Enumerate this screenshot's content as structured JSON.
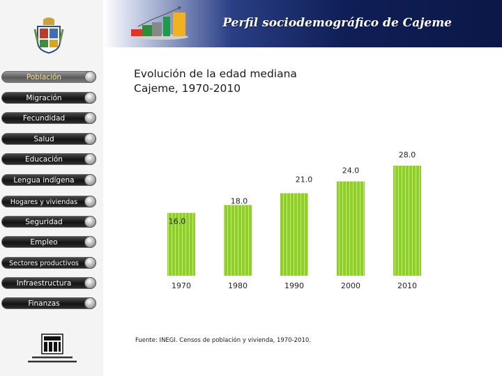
{
  "header": {
    "title": "Perfil sociodemográfico de Cajeme"
  },
  "sidebar": {
    "items": [
      {
        "label": "Población",
        "active": true
      },
      {
        "label": "Migración",
        "active": false
      },
      {
        "label": "Fecundidad",
        "active": false
      },
      {
        "label": "Salud",
        "active": false
      },
      {
        "label": "Educación",
        "active": false
      },
      {
        "label": "Lengua indígena",
        "active": false
      },
      {
        "label": "Hogares y viviendas",
        "active": false
      },
      {
        "label": "Seguridad",
        "active": false
      },
      {
        "label": "Empleo",
        "active": false
      },
      {
        "label": "Sectores productivos",
        "active": false
      },
      {
        "label": "Infraestructura",
        "active": false
      },
      {
        "label": "Finanzas",
        "active": false
      }
    ]
  },
  "main": {
    "title_line1": "Evolución de la edad mediana",
    "title_line2": "Cajeme, 1970-2010",
    "source": "Fuente: INEGI. Censos de población y vivienda, 1970-2010."
  },
  "chart_data": {
    "type": "bar",
    "title": "Evolución de la edad mediana Cajeme, 1970-2010",
    "xlabel": "",
    "ylabel": "",
    "categories": [
      "1970",
      "1980",
      "1990",
      "2000",
      "2010"
    ],
    "values": [
      16.0,
      18.0,
      21.0,
      24.0,
      28.0
    ],
    "value_labels": [
      "16.0",
      "18.0",
      "21.0",
      "24.0",
      "28.0"
    ],
    "ylim": [
      0,
      28.0
    ],
    "grid": false,
    "legend": "none",
    "bar_color": "#8fcf2a",
    "bar_stripe_color": "#c8ea7c"
  },
  "colors": {
    "header_dark": "#0f1f57",
    "button_dark": "#1a1a1a",
    "active_text": "#f2e08a"
  }
}
